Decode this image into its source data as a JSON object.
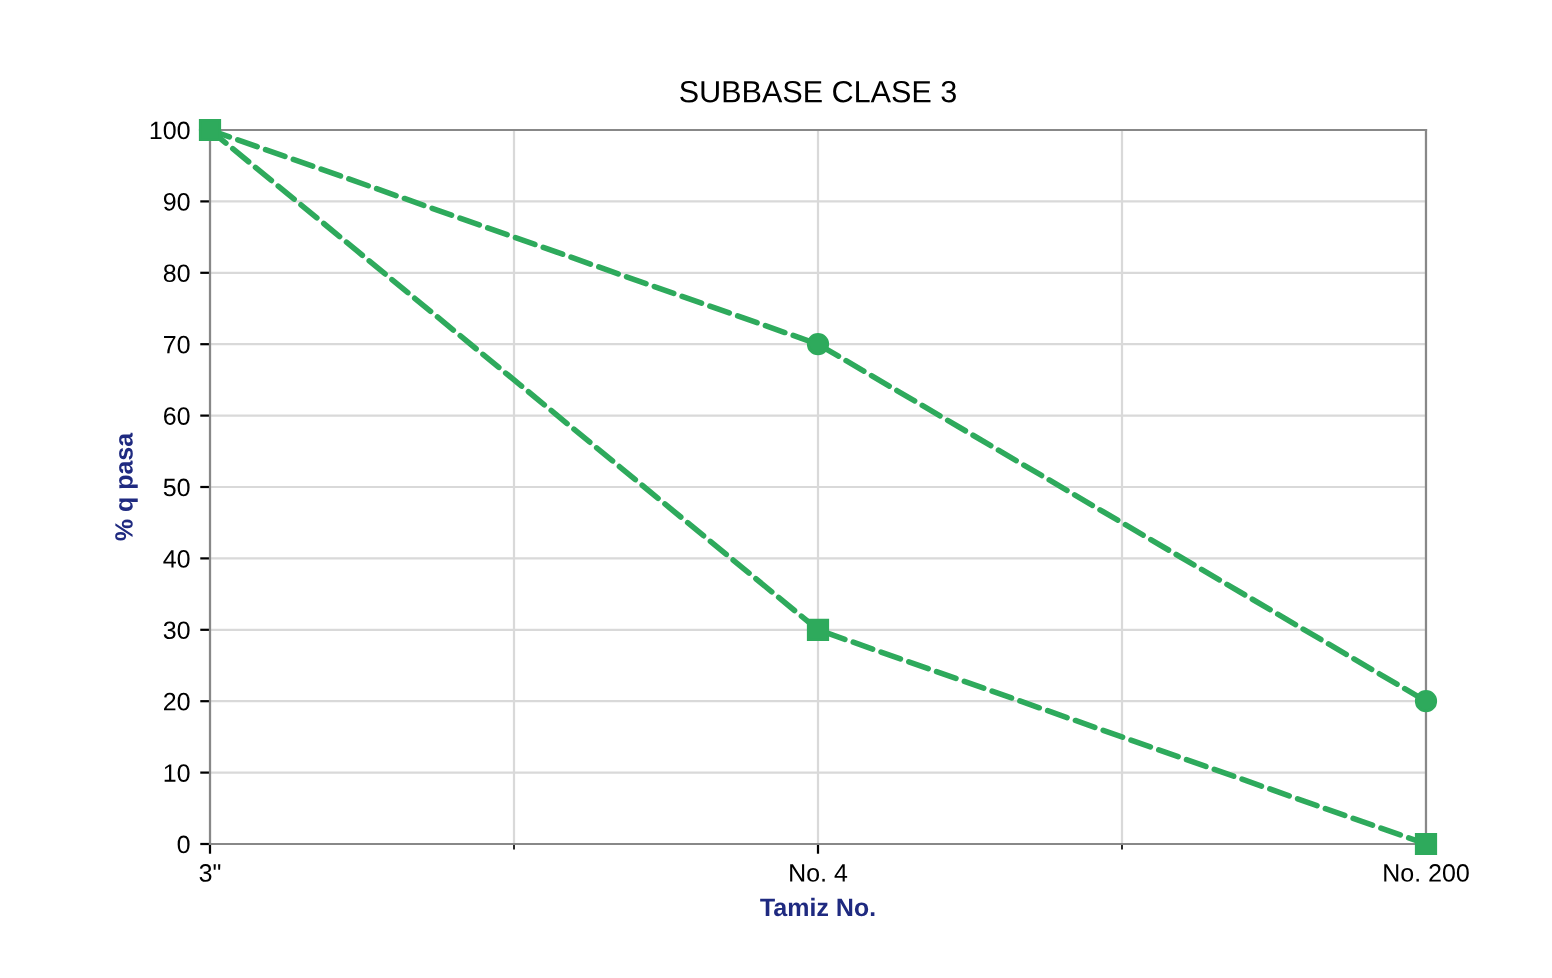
{
  "chart_data": {
    "type": "line",
    "title": "SUBBASE CLASE 3",
    "xlabel": "Tamiz No.",
    "ylabel": "% q pasa",
    "categories": [
      "3\"",
      "No. 4",
      "No. 200"
    ],
    "series": [
      {
        "color": "#2eaa5c",
        "values": [
          100,
          70,
          20
        ],
        "marker": "circle"
      },
      {
        "color": "#2eaa5c",
        "values": [
          100,
          30,
          0
        ],
        "marker": "square"
      }
    ],
    "line_style": "dashed",
    "ylim": [
      0,
      100
    ],
    "yticks": [
      0,
      10,
      20,
      30,
      40,
      50,
      60,
      70,
      80,
      90,
      100
    ],
    "grid": true,
    "legend": false
  }
}
